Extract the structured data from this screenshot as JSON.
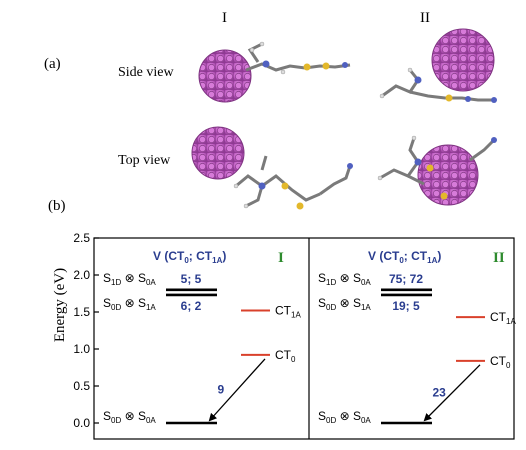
{
  "panel_a": {
    "label": "(a)",
    "columns": [
      "I",
      "II"
    ],
    "rows": [
      "Side view",
      "Top view"
    ]
  },
  "panel_b": {
    "label": "(b)"
  },
  "chart_data": {
    "type": "energy-level-diagram",
    "ylabel": "Energy (eV)",
    "ylim": [
      0,
      2.5
    ],
    "yticks": [
      "0.0",
      "0.5",
      "1.0",
      "1.5",
      "2.0",
      "2.5"
    ],
    "colors": {
      "level": "#000000",
      "ct_level": "#d9412b",
      "coupling_text": "#2a3d8f",
      "system_label": "#2e8b2e"
    },
    "panels": [
      {
        "system": "I",
        "header": "V (CT",
        "header_sub1": "0",
        "header_mid": "; CT",
        "header_sub2": "1A",
        "header_end": ")",
        "states": [
          {
            "label": "S",
            "sub1": "1D",
            "op": " ⊗ S",
            "sub2": "0A",
            "energy": 1.8
          },
          {
            "label": "S",
            "sub1": "0D",
            "op": " ⊗ S",
            "sub2": "1A",
            "energy": 1.73
          },
          {
            "label": "S",
            "sub1": "0D",
            "op": " ⊗ S",
            "sub2": "0A",
            "energy": 0.0
          }
        ],
        "ct_states": [
          {
            "label": "CT",
            "sub": "1A",
            "energy": 1.52
          },
          {
            "label": "CT",
            "sub": "0",
            "energy": 0.92
          }
        ],
        "couplings": {
          "upper": "5; 5",
          "lower": "6; 2"
        },
        "transfer_coupling": "9"
      },
      {
        "system": "II",
        "header": "V (CT",
        "header_sub1": "0",
        "header_mid": "; CT",
        "header_sub2": "1A",
        "header_end": ")",
        "states": [
          {
            "label": "S",
            "sub1": "1D",
            "op": " ⊗ S",
            "sub2": "0A",
            "energy": 1.8
          },
          {
            "label": "S",
            "sub1": "0D",
            "op": " ⊗ S",
            "sub2": "1A",
            "energy": 1.73
          },
          {
            "label": "S",
            "sub1": "0D",
            "op": " ⊗ S",
            "sub2": "0A",
            "energy": 0.0
          }
        ],
        "ct_states": [
          {
            "label": "CT",
            "sub": "1A",
            "energy": 1.43
          },
          {
            "label": "CT",
            "sub": "0",
            "energy": 0.84
          }
        ],
        "couplings": {
          "upper": "75; 72",
          "lower": "19; 5"
        },
        "transfer_coupling": "23"
      }
    ]
  }
}
